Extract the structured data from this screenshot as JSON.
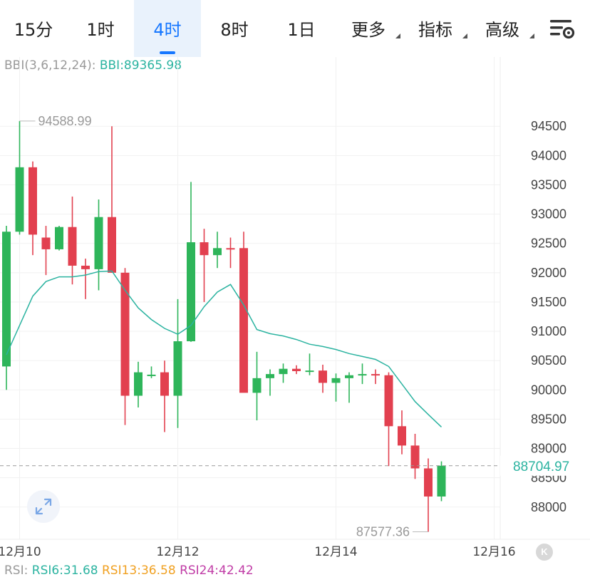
{
  "tabs": [
    {
      "label": "15分",
      "active": false
    },
    {
      "label": "1时",
      "active": false
    },
    {
      "label": "4时",
      "active": true
    },
    {
      "label": "8时",
      "active": false
    },
    {
      "label": "1日",
      "active": false
    },
    {
      "label": "更多",
      "active": false,
      "dropdown": true
    },
    {
      "label": "指标",
      "active": false,
      "dropdown": true
    },
    {
      "label": "高级",
      "active": false,
      "dropdown": true
    }
  ],
  "settings_icon": "chart-settings-icon",
  "bbi": {
    "label": "BBI(3,6,12,24):",
    "value_label": "BBI:89365.98"
  },
  "rsi": {
    "label": "RSI:",
    "rsi6": "RSI6:31.68",
    "rsi13": "RSI13:36.58",
    "rsi24": "RSI24:42.42"
  },
  "colors": {
    "up": "#2eb55a",
    "down": "#e2404f",
    "bbi": "#2bb3a0",
    "accent": "#1677ff",
    "price_tag": "#2bb3a0"
  },
  "chart_data": {
    "type": "candlestick",
    "y_ticks": [
      94500,
      94000,
      93500,
      93000,
      92500,
      92000,
      91500,
      91000,
      90500,
      90000,
      89500,
      89000,
      88500,
      88000
    ],
    "ylim": [
      87450,
      95500
    ],
    "x_labels": [
      {
        "label": "12月10",
        "index": 1
      },
      {
        "label": "12月12",
        "index": 13
      },
      {
        "label": "12月14",
        "index": 25
      },
      {
        "label": "12月16",
        "index": 37
      }
    ],
    "x_range": [
      0,
      37.5
    ],
    "current_price": 88704.97,
    "current_price_label": "88704.97",
    "high_annotation": {
      "label": "94588.99",
      "value": 94588.99,
      "index": 1
    },
    "low_annotation": {
      "label": "87577.36",
      "value": 87577.36,
      "index": 32
    },
    "candles": [
      {
        "open": 90400,
        "high": 92800,
        "low": 90000,
        "close": 92700
      },
      {
        "open": 92700,
        "high": 94589,
        "low": 92650,
        "close": 93800
      },
      {
        "open": 93800,
        "high": 93900,
        "low": 92300,
        "close": 92650
      },
      {
        "open": 92600,
        "high": 92800,
        "low": 91960,
        "close": 92400
      },
      {
        "open": 92400,
        "high": 92800,
        "low": 92380,
        "close": 92780
      },
      {
        "open": 92780,
        "high": 93300,
        "low": 91800,
        "close": 92120
      },
      {
        "open": 92120,
        "high": 92240,
        "low": 91550,
        "close": 92060
      },
      {
        "open": 92060,
        "high": 93250,
        "low": 91700,
        "close": 92950
      },
      {
        "open": 92950,
        "high": 94500,
        "low": 92000,
        "close": 92000
      },
      {
        "open": 92000,
        "high": 92080,
        "low": 89400,
        "close": 89900
      },
      {
        "open": 89900,
        "high": 90480,
        "low": 89700,
        "close": 90300
      },
      {
        "open": 90250,
        "high": 90400,
        "low": 90200,
        "close": 90260
      },
      {
        "open": 90300,
        "high": 90500,
        "low": 89280,
        "close": 89900
      },
      {
        "open": 89900,
        "high": 91550,
        "low": 89350,
        "close": 90830
      },
      {
        "open": 90830,
        "high": 93550,
        "low": 90820,
        "close": 92520
      },
      {
        "open": 92520,
        "high": 92750,
        "low": 91500,
        "close": 92300
      },
      {
        "open": 92300,
        "high": 92700,
        "low": 92080,
        "close": 92420
      },
      {
        "open": 92420,
        "high": 92600,
        "low": 92080,
        "close": 92400
      },
      {
        "open": 92420,
        "high": 92700,
        "low": 90000,
        "close": 89950
      },
      {
        "open": 89950,
        "high": 90650,
        "low": 89480,
        "close": 90200
      },
      {
        "open": 90200,
        "high": 90350,
        "low": 89900,
        "close": 90270
      },
      {
        "open": 90270,
        "high": 90450,
        "low": 90120,
        "close": 90360
      },
      {
        "open": 90360,
        "high": 90420,
        "low": 90270,
        "close": 90320
      },
      {
        "open": 90320,
        "high": 90620,
        "low": 90250,
        "close": 90330
      },
      {
        "open": 90330,
        "high": 90430,
        "low": 89950,
        "close": 90120
      },
      {
        "open": 90120,
        "high": 90280,
        "low": 89800,
        "close": 90200
      },
      {
        "open": 90200,
        "high": 90300,
        "low": 89780,
        "close": 90250
      },
      {
        "open": 90250,
        "high": 90450,
        "low": 90100,
        "close": 90270
      },
      {
        "open": 90270,
        "high": 90350,
        "low": 90100,
        "close": 90250
      },
      {
        "open": 90250,
        "high": 90300,
        "low": 88700,
        "close": 89380
      },
      {
        "open": 89380,
        "high": 89650,
        "low": 88900,
        "close": 89050
      },
      {
        "open": 89050,
        "high": 89250,
        "low": 88480,
        "close": 88660
      },
      {
        "open": 88660,
        "high": 88830,
        "low": 87577,
        "close": 88180
      },
      {
        "open": 88180,
        "high": 88780,
        "low": 88100,
        "close": 88705
      }
    ],
    "bbi_series": [
      90600,
      91100,
      91600,
      91850,
      91930,
      91930,
      91960,
      92020,
      92030,
      91700,
      91400,
      91200,
      91050,
      90950,
      91100,
      91420,
      91670,
      91800,
      91450,
      91030,
      90960,
      90920,
      90860,
      90780,
      90740,
      90690,
      90620,
      90570,
      90520,
      90400,
      90100,
      89800,
      89580,
      89365.98
    ]
  }
}
